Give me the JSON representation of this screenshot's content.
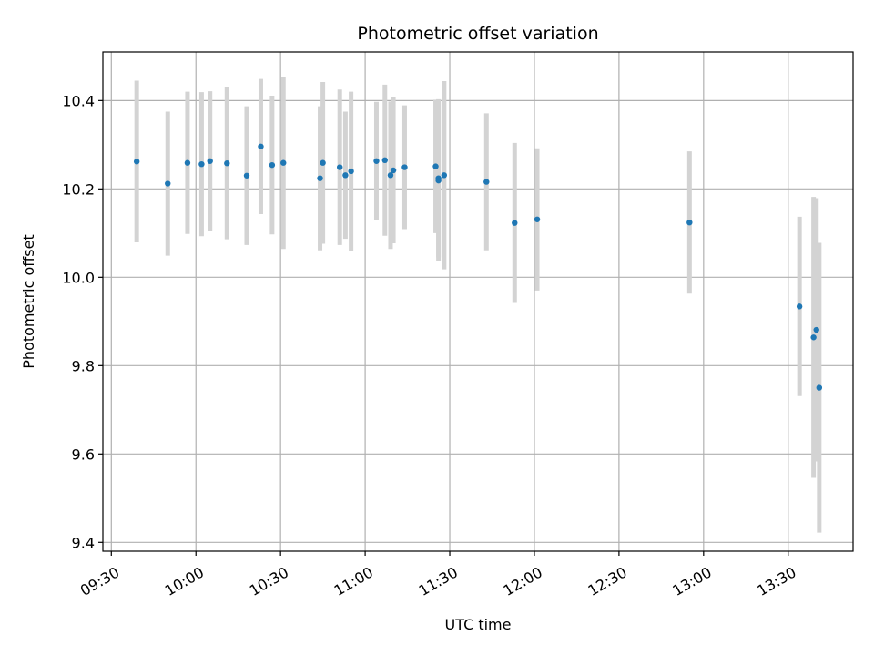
{
  "chart_data": {
    "type": "scatter",
    "title": "Photometric offset variation",
    "xlabel": "UTC time",
    "ylabel": "Photometric offset",
    "x_ticks": [
      "09:30",
      "10:00",
      "10:30",
      "11:00",
      "11:30",
      "12:00",
      "12:30",
      "13:00",
      "13:30"
    ],
    "x_range": [
      "09:27",
      "13:53"
    ],
    "y_ticks": [
      "9.4",
      "9.6",
      "9.8",
      "10.0",
      "10.2",
      "10.4"
    ],
    "ylim": [
      9.38,
      10.51
    ],
    "grid": true,
    "colors": {
      "point": "#1f77b4",
      "errorbar": "#d3d3d3",
      "grid": "#b0b0b0"
    },
    "points": [
      {
        "x": "09:39",
        "y": 10.262,
        "err": 0.183
      },
      {
        "x": "09:50",
        "y": 10.212,
        "err": 0.163
      },
      {
        "x": "09:57",
        "y": 10.259,
        "err": 0.161
      },
      {
        "x": "10:02",
        "y": 10.256,
        "err": 0.163
      },
      {
        "x": "10:05",
        "y": 10.263,
        "err": 0.158
      },
      {
        "x": "10:11",
        "y": 10.258,
        "err": 0.172
      },
      {
        "x": "10:18",
        "y": 10.23,
        "err": 0.157
      },
      {
        "x": "10:23",
        "y": 10.296,
        "err": 0.153
      },
      {
        "x": "10:27",
        "y": 10.254,
        "err": 0.157
      },
      {
        "x": "10:31",
        "y": 10.259,
        "err": 0.195
      },
      {
        "x": "10:44",
        "y": 10.224,
        "err": 0.163
      },
      {
        "x": "10:45",
        "y": 10.259,
        "err": 0.183
      },
      {
        "x": "10:51",
        "y": 10.249,
        "err": 0.176
      },
      {
        "x": "10:53",
        "y": 10.231,
        "err": 0.144
      },
      {
        "x": "10:55",
        "y": 10.24,
        "err": 0.18
      },
      {
        "x": "11:04",
        "y": 10.263,
        "err": 0.134
      },
      {
        "x": "11:07",
        "y": 10.265,
        "err": 0.171
      },
      {
        "x": "11:09",
        "y": 10.231,
        "err": 0.167
      },
      {
        "x": "11:10",
        "y": 10.242,
        "err": 0.165
      },
      {
        "x": "11:14",
        "y": 10.249,
        "err": 0.14
      },
      {
        "x": "11:25",
        "y": 10.251,
        "err": 0.151
      },
      {
        "x": "11:26",
        "y": 10.224,
        "err": 0.179
      },
      {
        "x": "11:26",
        "y": 10.219,
        "err": 0.183
      },
      {
        "x": "11:28",
        "y": 10.231,
        "err": 0.213
      },
      {
        "x": "11:43",
        "y": 10.216,
        "err": 0.155
      },
      {
        "x": "11:53",
        "y": 10.123,
        "err": 0.181
      },
      {
        "x": "12:01",
        "y": 10.131,
        "err": 0.161
      },
      {
        "x": "12:55",
        "y": 10.124,
        "err": 0.161
      },
      {
        "x": "13:34",
        "y": 9.934,
        "err": 0.203
      },
      {
        "x": "13:39",
        "y": 9.864,
        "err": 0.318
      },
      {
        "x": "13:40",
        "y": 9.881,
        "err": 0.298
      },
      {
        "x": "13:41",
        "y": 9.75,
        "err": 0.328
      }
    ]
  }
}
